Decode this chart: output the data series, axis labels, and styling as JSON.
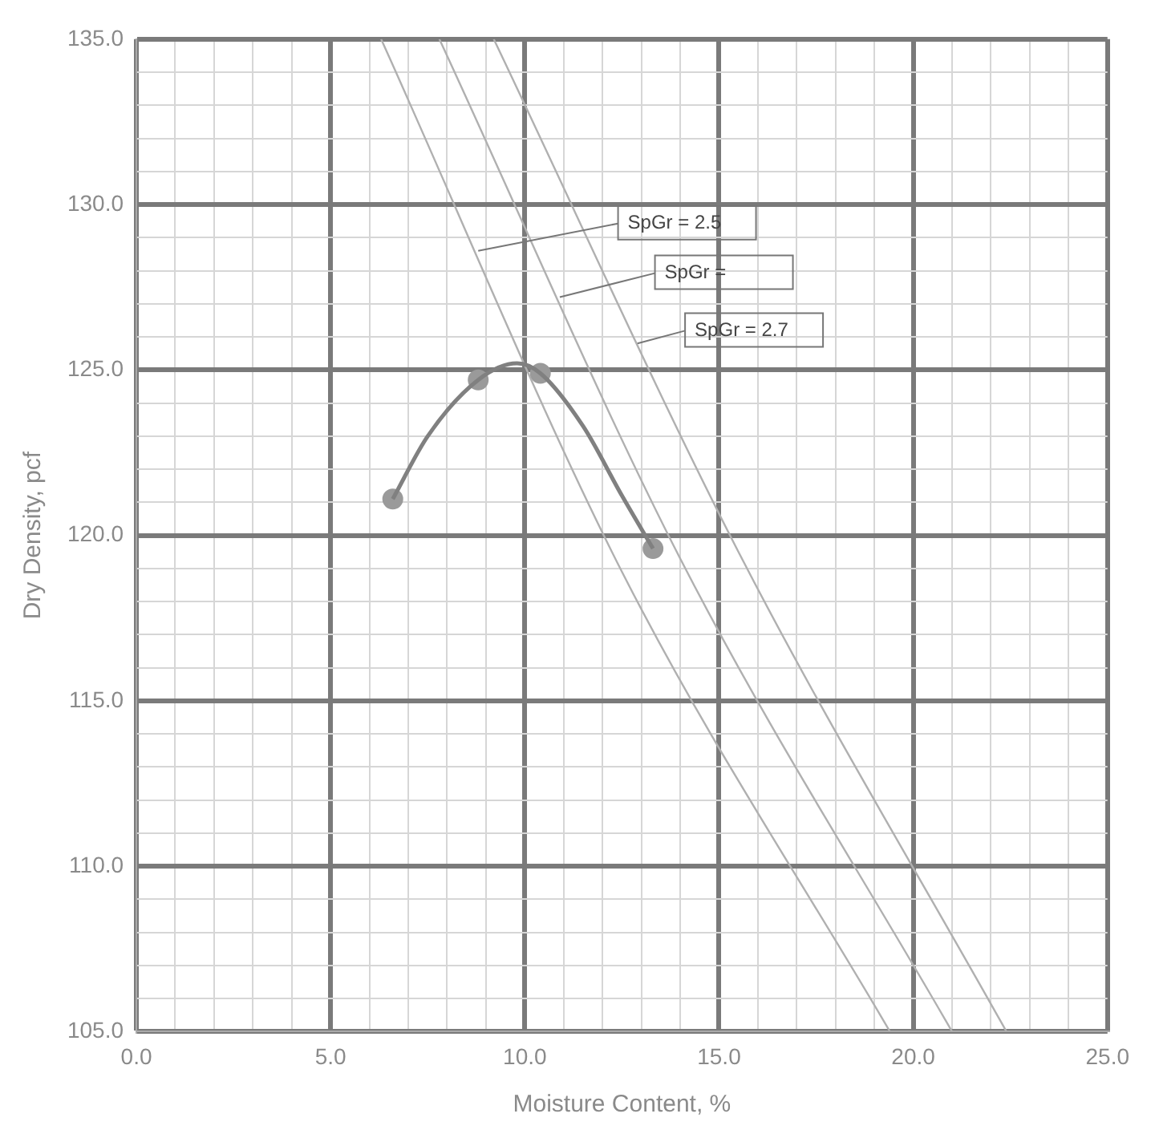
{
  "chart_data": {
    "type": "line",
    "xlabel": "Moisture Content, %",
    "ylabel": "Dry Density, pcf",
    "xlim": [
      0,
      25
    ],
    "ylim": [
      105,
      135
    ],
    "xticks": [
      {
        "value": 0,
        "label": "0.0"
      },
      {
        "value": 1,
        "label": null
      },
      {
        "value": 2,
        "label": null
      },
      {
        "value": 3,
        "label": null
      },
      {
        "value": 4,
        "label": null
      },
      {
        "value": 5,
        "label": "5.0"
      },
      {
        "value": 6,
        "label": null
      },
      {
        "value": 7,
        "label": null
      },
      {
        "value": 8,
        "label": null
      },
      {
        "value": 9,
        "label": null
      },
      {
        "value": 10,
        "label": "10.0"
      },
      {
        "value": 11,
        "label": null
      },
      {
        "value": 12,
        "label": null
      },
      {
        "value": 13,
        "label": null
      },
      {
        "value": 14,
        "label": null
      },
      {
        "value": 15,
        "label": "15.0"
      },
      {
        "value": 16,
        "label": null
      },
      {
        "value": 17,
        "label": null
      },
      {
        "value": 18,
        "label": null
      },
      {
        "value": 19,
        "label": null
      },
      {
        "value": 20,
        "label": "20.0"
      },
      {
        "value": 21,
        "label": null
      },
      {
        "value": 22,
        "label": null
      },
      {
        "value": 23,
        "label": null
      },
      {
        "value": 24,
        "label": null
      },
      {
        "value": 25,
        "label": "25.0"
      }
    ],
    "yticks": [
      {
        "value": 105,
        "label": "105.0"
      },
      {
        "value": 106,
        "label": null
      },
      {
        "value": 107,
        "label": null
      },
      {
        "value": 108,
        "label": null
      },
      {
        "value": 109,
        "label": null
      },
      {
        "value": 110,
        "label": "110.0"
      },
      {
        "value": 111,
        "label": null
      },
      {
        "value": 112,
        "label": null
      },
      {
        "value": 113,
        "label": null
      },
      {
        "value": 114,
        "label": null
      },
      {
        "value": 115,
        "label": "115.0"
      },
      {
        "value": 116,
        "label": null
      },
      {
        "value": 117,
        "label": null
      },
      {
        "value": 118,
        "label": null
      },
      {
        "value": 119,
        "label": null
      },
      {
        "value": 120,
        "label": "120.0"
      },
      {
        "value": 121,
        "label": null
      },
      {
        "value": 122,
        "label": null
      },
      {
        "value": 123,
        "label": null
      },
      {
        "value": 124,
        "label": null
      },
      {
        "value": 125,
        "label": "125.0"
      },
      {
        "value": 126,
        "label": null
      },
      {
        "value": 127,
        "label": null
      },
      {
        "value": 128,
        "label": null
      },
      {
        "value": 129,
        "label": null
      },
      {
        "value": 130,
        "label": "130.0"
      },
      {
        "value": 131,
        "label": null
      },
      {
        "value": 132,
        "label": null
      },
      {
        "value": 133,
        "label": null
      },
      {
        "value": 134,
        "label": null
      },
      {
        "value": 135,
        "label": "135.0"
      }
    ],
    "grid": true,
    "legend": false,
    "marker": "none",
    "series": [
      {
        "color": "#808080",
        "x": [
          6.6,
          7.5,
          8.8,
          9.8,
          10.4,
          11.5,
          12.5,
          13.3
        ],
        "values": [
          121.1,
          123.0,
          124.7,
          125.2,
          124.9,
          123.3,
          121.2,
          119.6
        ]
      },
      {
        "type": "scatter",
        "marker": "circle",
        "color": "#9a9a9a",
        "x": [
          6.6,
          8.8,
          10.4,
          13.3
        ],
        "values": [
          121.1,
          124.7,
          124.9,
          119.6
        ]
      },
      {
        "color": "#b0b0b0",
        "x": [
          6.3,
          12.5,
          19.4
        ],
        "values": [
          135,
          118.9,
          105
        ]
      },
      {
        "color": "#b0b0b0",
        "x": [
          7.8,
          14.0,
          21.0
        ],
        "values": [
          135,
          119.3,
          105
        ]
      },
      {
        "color": "#b0b0b0",
        "x": [
          9.2,
          15.5,
          22.4
        ],
        "values": [
          135,
          119.5,
          105
        ]
      }
    ],
    "annotations": [
      {
        "text": "SpGr = 2.5",
        "x": 8.8,
        "y": 128.6
      },
      {
        "text": "SpGr = ",
        "x": 10.9,
        "y": 127.2
      },
      {
        "text": "SpGr = 2.7",
        "x": 12.9,
        "y": 125.8
      }
    ]
  }
}
